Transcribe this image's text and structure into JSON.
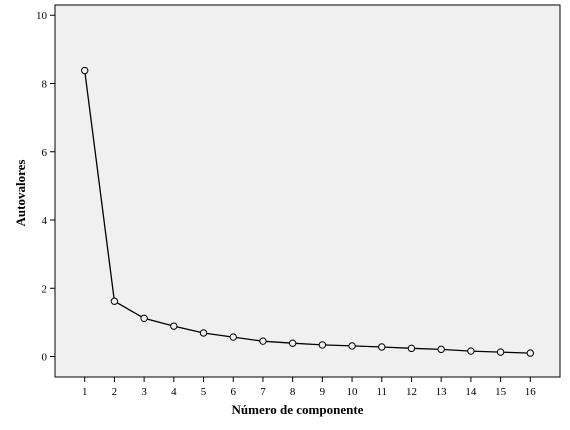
{
  "chart_data": {
    "type": "line",
    "title": "",
    "xlabel": "Número de componente",
    "ylabel": "Autovalores",
    "x": [
      1,
      2,
      3,
      4,
      5,
      6,
      7,
      8,
      9,
      10,
      11,
      12,
      13,
      14,
      15,
      16
    ],
    "series": [
      {
        "values": [
          8.38,
          1.62,
          1.12,
          0.89,
          0.69,
          0.57,
          0.45,
          0.39,
          0.34,
          0.31,
          0.28,
          0.24,
          0.21,
          0.16,
          0.13,
          0.1
        ]
      }
    ],
    "yticks": [
      0,
      2,
      4,
      6,
      8,
      10
    ],
    "ylim": [
      -0.6,
      10.3
    ],
    "xlim": [
      0,
      17
    ],
    "grid": false,
    "marker": "open-circle",
    "colors": {
      "plot_background": "#f0f0f0",
      "line": "#000000",
      "marker_fill": "#f0f0f0"
    }
  }
}
